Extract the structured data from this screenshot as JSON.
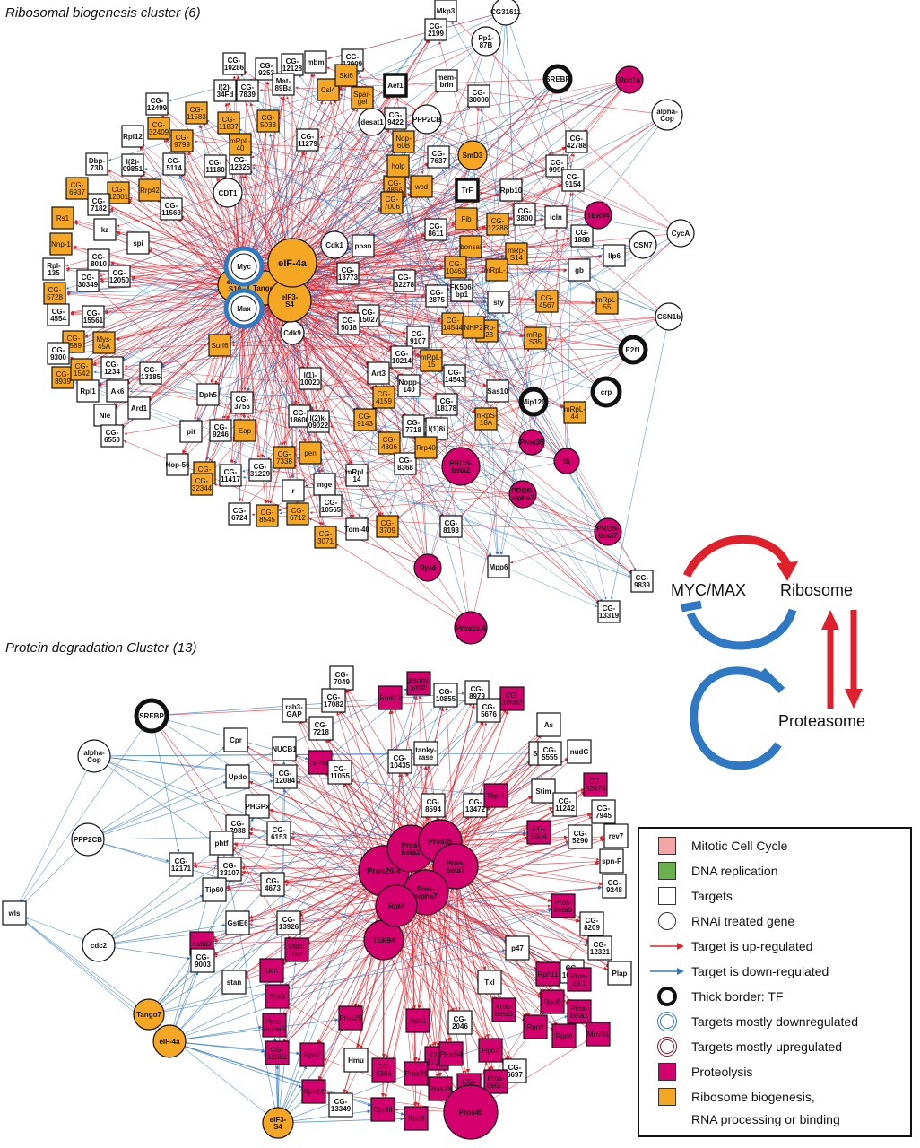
{
  "titles": {
    "cluster1": "Ribosomal biogenesis cluster (6)",
    "cluster2": "Protein degradation Cluster (13)"
  },
  "colors": {
    "up": "#e0202a",
    "down": "#2f78c4",
    "proteolysis": "#d4006e",
    "ribosome": "#f5a623",
    "target": "#ffffff",
    "mitotic": "#f4a6a6",
    "dna": "#6ab04c"
  },
  "schema": {
    "myc": "MYC/MAX",
    "ribosome": "Ribosome",
    "proteasome": "Proteasome"
  },
  "legend": [
    {
      "symbol": "pink-square",
      "text": "Mitotic Cell Cycle"
    },
    {
      "symbol": "green-square",
      "text": "DNA replication"
    },
    {
      "symbol": "white-square",
      "text": "Targets"
    },
    {
      "symbol": "white-circle",
      "text": "RNAi treated gene"
    },
    {
      "symbol": "red-arrow",
      "text": "Target is up-regulated"
    },
    {
      "symbol": "blue-arrow",
      "text": "Target is down-regulated"
    },
    {
      "symbol": "thick-circle",
      "text": "Thick border: TF"
    },
    {
      "symbol": "blue-ring",
      "text": "Targets mostly downregulated"
    },
    {
      "symbol": "red-ring",
      "text": "Targets mostly upregulated"
    },
    {
      "symbol": "magenta-square",
      "text": "Proteolysis"
    },
    {
      "symbol": "orange-square",
      "text": "Ribosome biogenesis,",
      "continuation": "RNA processing or binding"
    }
  ],
  "cluster1": {
    "hubs": [
      {
        "id": "myc",
        "label": "Myc",
        "shape": "circle",
        "fill": "white",
        "ring": "blue"
      },
      {
        "id": "max",
        "label": "Max",
        "shape": "circle",
        "fill": "white",
        "ring": "blue"
      },
      {
        "id": "eif4a",
        "label": "eIF-4a",
        "shape": "circle",
        "fill": "orange"
      },
      {
        "id": "eif3s4",
        "label": "eIF3-S4",
        "shape": "circle",
        "fill": "orange"
      },
      {
        "id": "eif3s10",
        "label": "eIF3-S10",
        "shape": "circle",
        "fill": "orange"
      },
      {
        "id": "tango7",
        "label": "Tango7",
        "shape": "circle",
        "fill": "orange"
      }
    ],
    "rnai": [
      {
        "id": "pp187b",
        "label": "Pp1-87B",
        "shape": "circle",
        "fill": "white"
      },
      {
        "id": "cg31611",
        "label": "CG31611",
        "shape": "circle",
        "fill": "white"
      },
      {
        "id": "srebp1",
        "label": "SREBP",
        "shape": "circle",
        "fill": "white",
        "tf": true
      },
      {
        "id": "roc1a",
        "label": "Roc1a",
        "shape": "circle",
        "fill": "magenta"
      },
      {
        "id": "alphacop1",
        "label": "alpha-Cop",
        "shape": "circle",
        "fill": "white"
      },
      {
        "id": "desat1",
        "label": "desat1",
        "shape": "circle",
        "fill": "white"
      },
      {
        "id": "pp2cb1",
        "label": "PPP2CB",
        "shape": "circle",
        "fill": "white"
      },
      {
        "id": "smd3",
        "label": "SmD3",
        "shape": "circle",
        "fill": "orange"
      },
      {
        "id": "cdt1",
        "label": "CDT1",
        "shape": "circle",
        "fill": "white"
      },
      {
        "id": "cdk1",
        "label": "Cdk1",
        "shape": "circle",
        "fill": "white"
      },
      {
        "id": "cdk9",
        "label": "Cdk9",
        "shape": "circle",
        "fill": "white"
      },
      {
        "id": "ter94a",
        "label": "TER94",
        "shape": "circle",
        "fill": "magenta"
      },
      {
        "id": "csn7",
        "label": "CSN7",
        "shape": "circle",
        "fill": "white"
      },
      {
        "id": "cyca",
        "label": "CycA",
        "shape": "circle",
        "fill": "white"
      },
      {
        "id": "csn1b",
        "label": "CSN1b",
        "shape": "circle",
        "fill": "white"
      },
      {
        "id": "e2f1",
        "label": "E2f1",
        "shape": "circle",
        "fill": "white",
        "tf": true
      },
      {
        "id": "crp",
        "label": "crp",
        "shape": "circle",
        "fill": "white",
        "tf": true
      },
      {
        "id": "mip120",
        "label": "Mip120",
        "shape": "circle",
        "fill": "white",
        "tf": true
      },
      {
        "id": "pros35",
        "label": "Pros35",
        "shape": "circle",
        "fill": "magenta"
      },
      {
        "id": "th",
        "label": "th",
        "shape": "circle",
        "fill": "magenta"
      },
      {
        "id": "prosb2a",
        "label": "PROS-beta2",
        "shape": "circle",
        "fill": "magenta"
      },
      {
        "id": "prosa7a",
        "label": "PROS-alpha7",
        "shape": "circle",
        "fill": "magenta"
      },
      {
        "id": "prosb7a",
        "label": "PROS-beta7",
        "shape": "circle",
        "fill": "magenta"
      },
      {
        "id": "rpt4a",
        "label": "Rpt4",
        "shape": "circle",
        "fill": "magenta"
      },
      {
        "id": "pros264a",
        "label": "Pros26.4",
        "shape": "circle",
        "fill": "magenta"
      }
    ],
    "targets": [
      [
        "Mkp3",
        "w"
      ],
      [
        "CG-2199",
        "w"
      ],
      [
        "CG-10286",
        "w"
      ],
      [
        "CG-9253",
        "w"
      ],
      [
        "CG-12128",
        "w"
      ],
      [
        "mbm",
        "w"
      ],
      [
        "CG-12909",
        "w"
      ],
      [
        "l(2)-34Fd",
        "w"
      ],
      [
        "CG-7839",
        "w"
      ],
      [
        "Mat-89Ba",
        "w"
      ],
      [
        "Csl4",
        "o"
      ],
      [
        "Ski6",
        "o"
      ],
      [
        "Spar-gel",
        "o"
      ],
      [
        "Aef1",
        "w"
      ],
      [
        "mem-brin",
        "w"
      ],
      [
        "CG-30000",
        "w"
      ],
      [
        "CG-12499",
        "w"
      ],
      [
        "CG-32409",
        "o"
      ],
      [
        "CG-11583",
        "o"
      ],
      [
        "CG-11837",
        "o"
      ],
      [
        "CG-5033",
        "o"
      ],
      [
        "CG-9422",
        "w"
      ],
      [
        "Rpl12",
        "w"
      ],
      [
        "CG-9799",
        "o"
      ],
      [
        "l(2)-09851",
        "w"
      ],
      [
        "CG-5114",
        "w"
      ],
      [
        "CG-11180",
        "w"
      ],
      [
        "CG-12325",
        "w"
      ],
      [
        "mRpL-40",
        "o"
      ],
      [
        "CG-11279",
        "w"
      ],
      [
        "Nop-60B",
        "o"
      ],
      [
        "CG-42788",
        "w"
      ],
      [
        "Dbp-73D",
        "w"
      ],
      [
        "CG-6937",
        "o"
      ],
      [
        "CG-12301",
        "o"
      ],
      [
        "Rrp42",
        "o"
      ],
      [
        "CG-7182",
        "w"
      ],
      [
        "CG-11563",
        "w"
      ],
      [
        "CG-4866",
        "o"
      ],
      [
        "holp",
        "o"
      ],
      [
        "CG-7637",
        "w"
      ],
      [
        "wcd",
        "o"
      ],
      [
        "CG-9996",
        "w"
      ],
      [
        "CG-9154",
        "w"
      ],
      [
        "Rpb10",
        "w"
      ],
      [
        "TrF",
        "w"
      ],
      [
        "Rs1",
        "o"
      ],
      [
        "Nnp-1",
        "o"
      ],
      [
        "kz",
        "w"
      ],
      [
        "spi",
        "w"
      ],
      [
        "CG-7006",
        "o"
      ],
      [
        "Fib",
        "o"
      ],
      [
        "CG-12288",
        "o"
      ],
      [
        "CG-3800",
        "w"
      ],
      [
        "icln",
        "w"
      ],
      [
        "CG-1888",
        "w"
      ],
      [
        "Rpl-135",
        "w"
      ],
      [
        "CG-8010",
        "w"
      ],
      [
        "CG-30349",
        "w"
      ],
      [
        "CG-12050",
        "w"
      ],
      [
        "ppan",
        "w"
      ],
      [
        "CG-8611",
        "w"
      ],
      [
        "bonsai",
        "o"
      ],
      [
        "mRp-S14",
        "o"
      ],
      [
        "Ilp6",
        "w"
      ],
      [
        "CG-5728",
        "o"
      ],
      [
        "CG-13773",
        "w"
      ],
      [
        "CG-32278",
        "w"
      ],
      [
        "CG-10463",
        "o"
      ],
      [
        "mRpL-1",
        "o"
      ],
      [
        "gb",
        "w"
      ],
      [
        "CG-4554",
        "w"
      ],
      [
        "CG-15561",
        "w"
      ],
      [
        "CG-2875",
        "w"
      ],
      [
        "FK506-bp1",
        "w"
      ],
      [
        "sty",
        "w"
      ],
      [
        "CG-4567",
        "o"
      ],
      [
        "mRpL-55",
        "o"
      ],
      [
        "CG-5589",
        "o"
      ],
      [
        "Mys-45A",
        "o"
      ],
      [
        "CG-9300",
        "w"
      ],
      [
        "CG-15027",
        "w"
      ],
      [
        "CG-5018",
        "w"
      ],
      [
        "CG-9107",
        "w"
      ],
      [
        "CG-14544",
        "o"
      ],
      [
        "mRp-S23",
        "o"
      ],
      [
        "NHP2",
        "o"
      ],
      [
        "mRp-S35",
        "o"
      ],
      [
        "CG-8939",
        "o"
      ],
      [
        "CG-1542",
        "o"
      ],
      [
        "CG-1234",
        "w"
      ],
      [
        "Surf6",
        "o"
      ],
      [
        "CG-10214",
        "w"
      ],
      [
        "mRpL-15",
        "o"
      ],
      [
        "CG-14543",
        "w"
      ],
      [
        "Rpl1",
        "w"
      ],
      [
        "Ak6",
        "w"
      ],
      [
        "CG-13185",
        "w"
      ],
      [
        "l(1)-10020",
        "w"
      ],
      [
        "Art3",
        "w"
      ],
      [
        "Nopp-140",
        "w"
      ],
      [
        "Sas10",
        "w"
      ],
      [
        "Nle",
        "w"
      ],
      [
        "Ard1",
        "w"
      ],
      [
        "Dph5",
        "w"
      ],
      [
        "CG-3756",
        "w"
      ],
      [
        "CG-4159",
        "o"
      ],
      [
        "CG-18178",
        "w"
      ],
      [
        "mRpL-44",
        "o"
      ],
      [
        "CG-6550",
        "w"
      ],
      [
        "pit",
        "w"
      ],
      [
        "CG-9246",
        "w"
      ],
      [
        "Eap",
        "o"
      ],
      [
        "CG-18600",
        "w"
      ],
      [
        "l(2)k-09022",
        "w"
      ],
      [
        "CG-9143",
        "o"
      ],
      [
        "CG-7718",
        "w"
      ],
      [
        "l(1)8i",
        "w"
      ],
      [
        "mRpS-18A",
        "o"
      ],
      [
        "Nop-56",
        "w"
      ],
      [
        "CG-13097",
        "o"
      ],
      [
        "CG-11417",
        "w"
      ],
      [
        "CG-31229",
        "w"
      ],
      [
        "CG-7338",
        "o"
      ],
      [
        "pen",
        "o"
      ],
      [
        "CG-4806",
        "o"
      ],
      [
        "CG-8368",
        "w"
      ],
      [
        "Rrp40",
        "o"
      ],
      [
        "CG-32344",
        "o"
      ],
      [
        "r",
        "w"
      ],
      [
        "mge",
        "w"
      ],
      [
        "mRpL-14",
        "w"
      ],
      [
        "CG-6724",
        "w"
      ],
      [
        "CG-8545",
        "o"
      ],
      [
        "CG-6712",
        "o"
      ],
      [
        "CG-10565",
        "w"
      ],
      [
        "CG-3709",
        "o"
      ],
      [
        "CG-8193",
        "w"
      ],
      [
        "Tom-40",
        "w"
      ],
      [
        "CG-3071",
        "o"
      ],
      [
        "Mpp6",
        "w"
      ],
      [
        "CG-9839",
        "w"
      ],
      [
        "CG-13319",
        "w"
      ]
    ]
  },
  "cluster2": {
    "rnai": [
      {
        "id": "srebp2",
        "label": "SREBP",
        "fill": "white",
        "tf": true
      },
      {
        "id": "alphacop2",
        "label": "alpha-Cop",
        "fill": "white"
      },
      {
        "id": "pp2cb2",
        "label": "PPP2CB",
        "fill": "white"
      },
      {
        "id": "cdc2",
        "label": "cdc2",
        "fill": "white"
      },
      {
        "id": "tango7b",
        "label": "Tango7",
        "fill": "orange"
      },
      {
        "id": "eif4ab",
        "label": "eIF-4a",
        "fill": "orange"
      },
      {
        "id": "eif3s4b",
        "label": "eIF3-S4",
        "fill": "orange"
      },
      {
        "id": "pros264b",
        "label": "Pros26.4",
        "fill": "magenta"
      },
      {
        "id": "prosb2b",
        "label": "Pros-beta2",
        "fill": "magenta"
      },
      {
        "id": "pros35b",
        "label": "Pros35",
        "fill": "magenta"
      },
      {
        "id": "prosb7b",
        "label": "Pros-beta7",
        "fill": "magenta"
      },
      {
        "id": "prosa7b",
        "label": "Pros-alpha7",
        "fill": "magenta"
      },
      {
        "id": "rpt4b",
        "label": "Rpt4",
        "fill": "magenta"
      },
      {
        "id": "ter94b",
        "label": "TER94",
        "fill": "magenta"
      },
      {
        "id": "pros45",
        "label": "Pros45",
        "fill": "magenta"
      }
    ],
    "targets": [
      [
        "wls",
        "w"
      ],
      [
        "CG-7049",
        "w"
      ],
      [
        "rab3-GAP",
        "w"
      ],
      [
        "CG-17082",
        "w"
      ],
      [
        "CG-7218",
        "w"
      ],
      [
        "Rad23",
        "m"
      ],
      [
        "granny-smith",
        "m"
      ],
      [
        "CG-10855",
        "w"
      ],
      [
        "CG-8979",
        "w"
      ],
      [
        "CG-10602",
        "m"
      ],
      [
        "As",
        "w"
      ],
      [
        "Cpr",
        "w"
      ],
      [
        "NUCB1",
        "w"
      ],
      [
        "slmb",
        "m"
      ],
      [
        "CG-11055",
        "w"
      ],
      [
        "CG-10435",
        "w"
      ],
      [
        "tanky-rase",
        "w"
      ],
      [
        "CG-5676",
        "w"
      ],
      [
        "Sirt4",
        "w"
      ],
      [
        "Updo",
        "w"
      ],
      [
        "CG-12084",
        "w"
      ],
      [
        "CG-8594",
        "w"
      ],
      [
        "CG-13472",
        "w"
      ],
      [
        "CG-5555",
        "w"
      ],
      [
        "nudC",
        "w"
      ],
      [
        "PHGPx",
        "w"
      ],
      [
        "Stim",
        "w"
      ],
      [
        "Tbp-1",
        "m"
      ],
      [
        "CG-32473",
        "m"
      ],
      [
        "CG-7988",
        "w"
      ],
      [
        "CG-6153",
        "w"
      ],
      [
        "CG-11242",
        "w"
      ],
      [
        "CG-7945",
        "w"
      ],
      [
        "phtf",
        "w"
      ],
      [
        "CG-12171",
        "w"
      ],
      [
        "CG-33107",
        "w"
      ],
      [
        "CG-4673",
        "w"
      ],
      [
        "CG-9934",
        "m"
      ],
      [
        "CG-5290",
        "w"
      ],
      [
        "rev7",
        "w"
      ],
      [
        "spn-F",
        "w"
      ],
      [
        "CG-9248",
        "w"
      ],
      [
        "Tip60",
        "w"
      ],
      [
        "CG-13926",
        "w"
      ],
      [
        "GstE6",
        "w"
      ],
      [
        "Pros-beta5",
        "m"
      ],
      [
        "CG-8209",
        "w"
      ],
      [
        "cathD",
        "m"
      ],
      [
        "CG-9003",
        "w"
      ],
      [
        "Ufd1-like",
        "m"
      ],
      [
        "p47",
        "w"
      ],
      [
        "CG-12321",
        "w"
      ],
      [
        "CG-10630",
        "w"
      ],
      [
        "Plap",
        "w"
      ],
      [
        "stan",
        "w"
      ],
      [
        "Uch",
        "m"
      ],
      [
        "Txl",
        "w"
      ],
      [
        "Rpn11",
        "m"
      ],
      [
        "Pros-28.1",
        "m"
      ],
      [
        "Rpn5",
        "m"
      ],
      [
        "Pros-beta1",
        "m"
      ],
      [
        "Rpt3",
        "m"
      ],
      [
        "Pros-alpha5",
        "m"
      ],
      [
        "Pros25",
        "m"
      ],
      [
        "Rpn1",
        "m"
      ],
      [
        "CG-2046",
        "w"
      ],
      [
        "Pros-beta3",
        "m"
      ],
      [
        "Rpn9",
        "m"
      ],
      [
        "Rpn6",
        "m"
      ],
      [
        "Mov34",
        "m"
      ],
      [
        "CG-12082",
        "m"
      ],
      [
        "Rpn7",
        "m"
      ],
      [
        "Hmu",
        "w"
      ],
      [
        "CG-17331",
        "m"
      ],
      [
        "Pros54",
        "m"
      ],
      [
        "Rpn2",
        "m"
      ],
      [
        "CG-6697",
        "w"
      ],
      [
        "Rpn12",
        "m"
      ],
      [
        "CG-5384",
        "m"
      ],
      [
        "Pros28",
        "m"
      ],
      [
        "Pros29",
        "m"
      ],
      [
        "CG-13779",
        "m"
      ],
      [
        "Pros-beta7",
        "m"
      ],
      [
        "CG-13349",
        "w"
      ],
      [
        "DppIII",
        "m"
      ],
      [
        "Rpn3",
        "m"
      ]
    ]
  }
}
